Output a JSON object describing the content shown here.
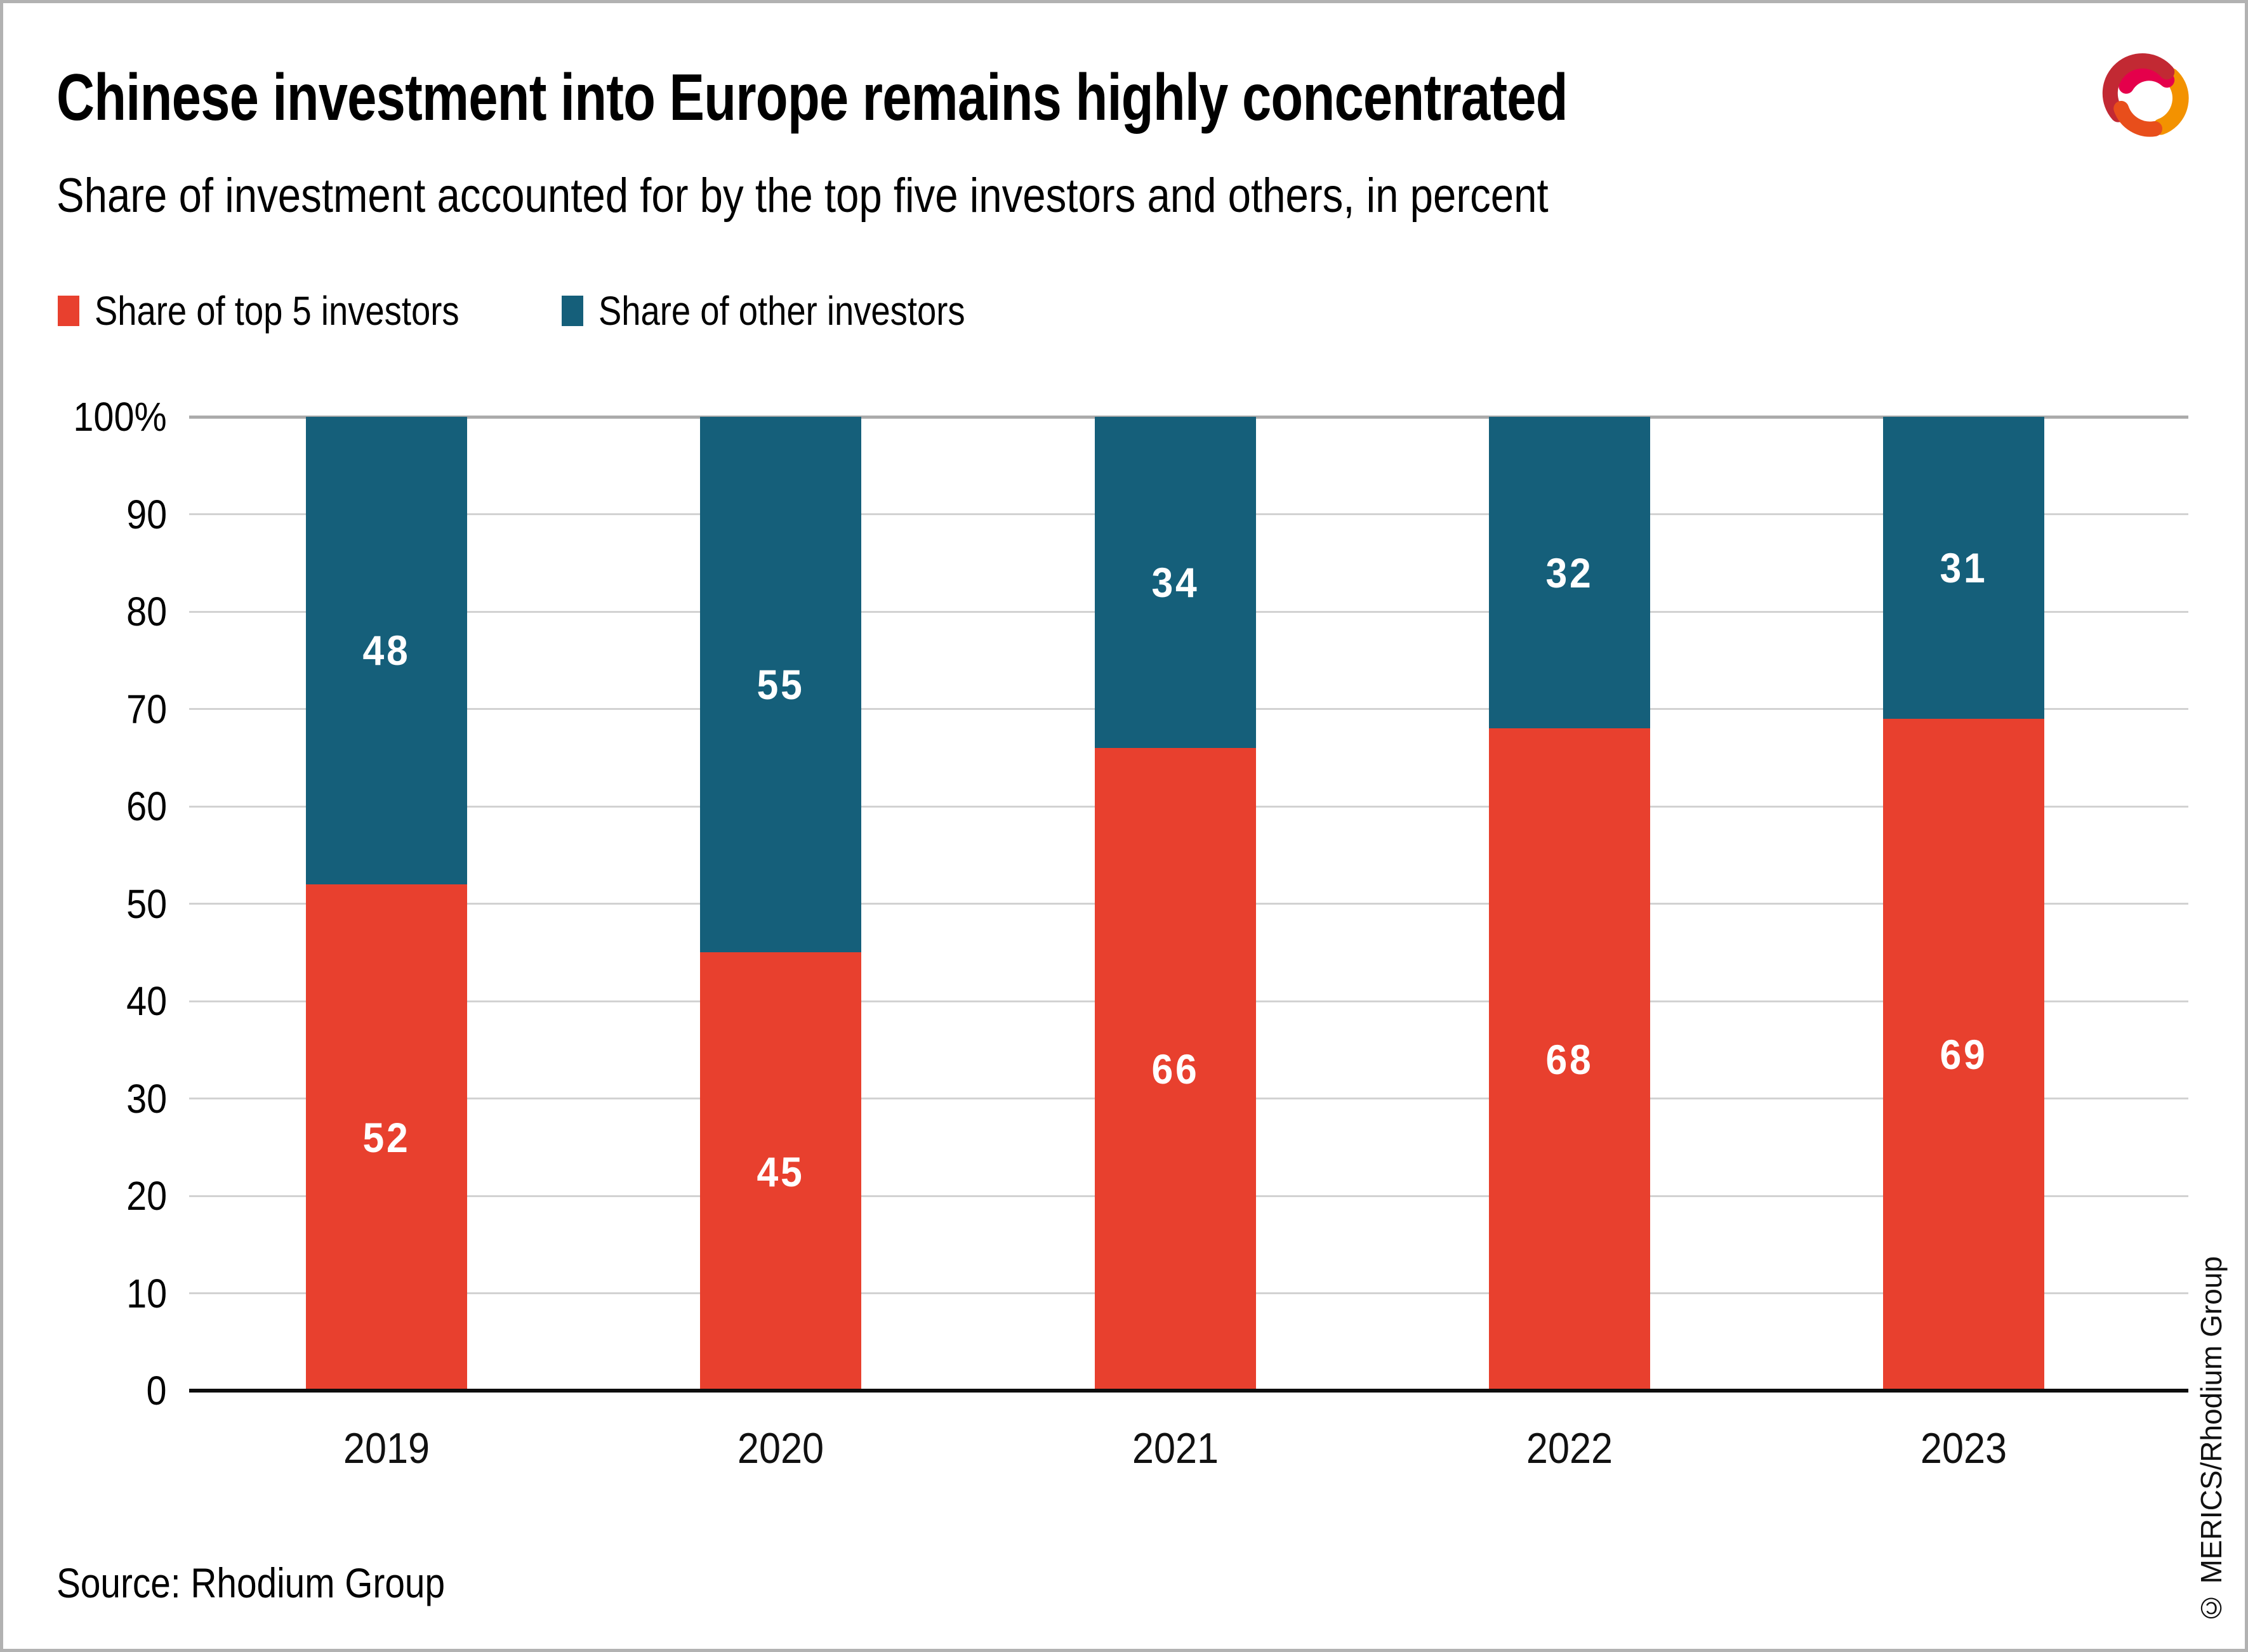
{
  "header": {
    "title": "Chinese investment into Europe remains highly concentrated",
    "subtitle": "Share of investment accounted for by the top five investors and others, in percent"
  },
  "legend": [
    {
      "label": "Share of top 5 investors",
      "color": "#e8402e"
    },
    {
      "label": "Share of other investors",
      "color": "#155f7a"
    }
  ],
  "chart_data": {
    "type": "bar",
    "stacked": true,
    "title": "Chinese investment into Europe remains highly concentrated",
    "subtitle": "Share of investment accounted for by the top five investors and others, in percent",
    "categories": [
      "2019",
      "2020",
      "2021",
      "2022",
      "2023"
    ],
    "series": [
      {
        "name": "Share of top 5 investors",
        "color": "#e8402e",
        "values": [
          52,
          45,
          66,
          68,
          69
        ]
      },
      {
        "name": "Share of other investors",
        "color": "#155f7a",
        "values": [
          48,
          55,
          34,
          32,
          31
        ]
      }
    ],
    "xlabel": "",
    "ylabel": "",
    "ylim": [
      0,
      100
    ],
    "ytick_labels": [
      "100%",
      "90",
      "80",
      "70",
      "60",
      "50",
      "40",
      "30",
      "20",
      "10",
      "0"
    ],
    "grid": true,
    "legend_position": "top-left",
    "value_labels": "inside-center"
  },
  "footer": {
    "source": "Source: Rhodium Group",
    "copyright": "© MERICS/Rhodium Group"
  },
  "logo": {
    "name": "merics-logo",
    "colors": {
      "red": "#c22933",
      "magenta": "#e5004b",
      "orange": "#f39200",
      "orange_red": "#e84e1b"
    }
  }
}
